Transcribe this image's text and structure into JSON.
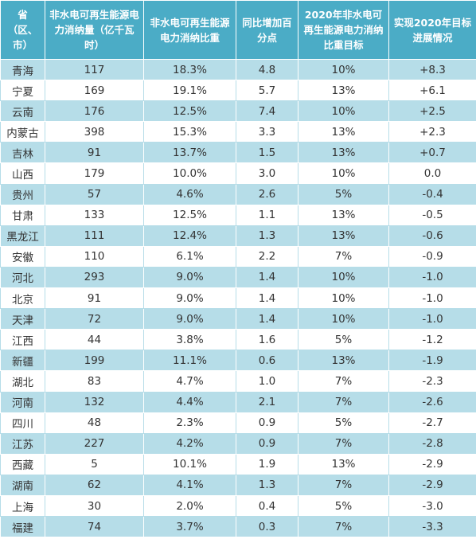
{
  "headers": [
    "省（区、市）",
    "非水电可再生能源电力消纳量（亿千瓦时）",
    "非水电可再生能源电力消纳比重",
    "同比增加百分点",
    "2020年非水电可再生能源电力消纳比重目标",
    "实现2020年目标进展情况"
  ],
  "rows": [
    [
      "青海",
      "117",
      "18.3%",
      "4.8",
      "10%",
      "+8.3"
    ],
    [
      "宁夏",
      "169",
      "19.1%",
      "5.7",
      "13%",
      "+6.1"
    ],
    [
      "云南",
      "176",
      "12.5%",
      "7.4",
      "10%",
      "+2.5"
    ],
    [
      "内蒙古",
      "398",
      "15.3%",
      "3.3",
      "13%",
      "+2.3"
    ],
    [
      "吉林",
      "91",
      "13.7%",
      "1.5",
      "13%",
      "+0.7"
    ],
    [
      "山西",
      "179",
      "10.0%",
      "3.0",
      "10%",
      "0.0"
    ],
    [
      "贵州",
      "57",
      "4.6%",
      "2.6",
      "5%",
      "-0.4"
    ],
    [
      "甘肃",
      "133",
      "12.5%",
      "1.1",
      "13%",
      "-0.5"
    ],
    [
      "黑龙江",
      "111",
      "12.4%",
      "1.3",
      "13%",
      "-0.6"
    ],
    [
      "安徽",
      "110",
      "6.1%",
      "2.2",
      "7%",
      "-0.9"
    ],
    [
      "河北",
      "293",
      "9.0%",
      "1.4",
      "10%",
      "-1.0"
    ],
    [
      "北京",
      "91",
      "9.0%",
      "1.4",
      "10%",
      "-1.0"
    ],
    [
      "天津",
      "72",
      "9.0%",
      "1.4",
      "10%",
      "-1.0"
    ],
    [
      "江西",
      "44",
      "3.8%",
      "1.6",
      "5%",
      "-1.2"
    ],
    [
      "新疆",
      "199",
      "11.1%",
      "0.6",
      "13%",
      "-1.9"
    ],
    [
      "湖北",
      "83",
      "4.7%",
      "1.0",
      "7%",
      "-2.3"
    ],
    [
      "河南",
      "132",
      "4.4%",
      "2.1",
      "7%",
      "-2.6"
    ],
    [
      "四川",
      "48",
      "2.3%",
      "0.9",
      "5%",
      "-2.7"
    ],
    [
      "江苏",
      "227",
      "4.2%",
      "0.9",
      "7%",
      "-2.8"
    ],
    [
      "西藏",
      "5",
      "10.1%",
      "1.9",
      "13%",
      "-2.9"
    ],
    [
      "湖南",
      "62",
      "4.1%",
      "1.3",
      "7%",
      "-2.9"
    ],
    [
      "上海",
      "30",
      "2.0%",
      "0.4",
      "5%",
      "-3.0"
    ],
    [
      "福建",
      "74",
      "3.7%",
      "0.3",
      "7%",
      "-3.3"
    ]
  ],
  "colors": {
    "header_bg": "#4bacc6",
    "band": "#b6dde8",
    "text": "#333333"
  }
}
